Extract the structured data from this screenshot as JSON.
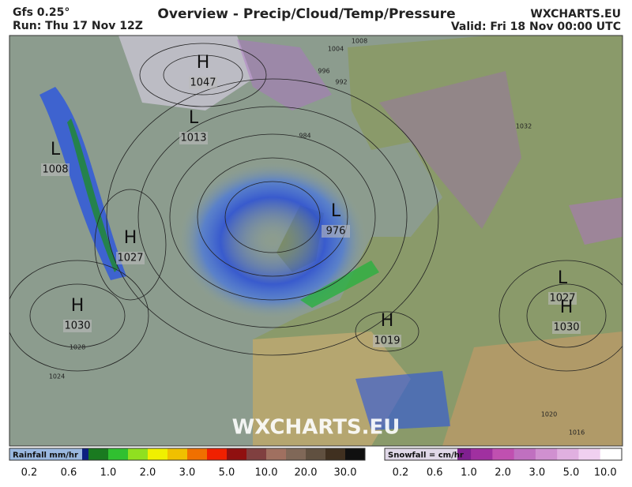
{
  "header": {
    "model": "Gfs 0.25°",
    "run": "Run: Thu 17 Nov 12Z",
    "title": "Overview - Precip/Cloud/Temp/Pressure",
    "site": "WXCHARTS.EU",
    "valid": "Valid: Fri 18 Nov 00:00 UTC"
  },
  "pressure_centers": [
    {
      "symbol": "H",
      "value": "1047"
    },
    {
      "symbol": "L",
      "value": "1013"
    },
    {
      "symbol": "L",
      "value": "1008"
    },
    {
      "symbol": "H",
      "value": "1027"
    },
    {
      "symbol": "H",
      "value": "1030"
    },
    {
      "symbol": "L",
      "value": "976"
    },
    {
      "symbol": "H",
      "value": "1019"
    },
    {
      "symbol": "L",
      "value": "1027"
    },
    {
      "symbol": "H",
      "value": "1030"
    }
  ],
  "isobar_labels": [
    "1004",
    "996",
    "992",
    "984",
    "1008",
    "1028",
    "1024",
    "1032",
    "1020",
    "1016"
  ],
  "watermark": "WXCHARTS.EU",
  "legends": [
    {
      "title": "Rainfall mm/hr",
      "ticks": [
        "0.2",
        "0.6",
        "1.0",
        "2.0",
        "3.0",
        "5.0",
        "10.0",
        "20.0",
        "30.0"
      ]
    },
    {
      "title": "Snowfall = cm/hr",
      "ticks": [
        "0.2",
        "0.6",
        "1.0",
        "2.0",
        "3.0",
        "5.0",
        "10.0"
      ]
    }
  ]
}
